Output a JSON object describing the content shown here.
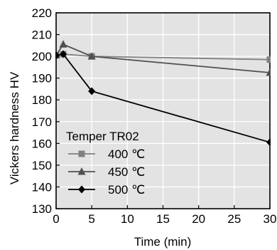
{
  "chart_data": {
    "type": "line",
    "title": "",
    "xlabel": "Time (min)",
    "ylabel": "Vickers hardness HV",
    "xlim": [
      0,
      30
    ],
    "ylim": [
      130,
      220
    ],
    "xticks": [
      0,
      5,
      10,
      15,
      20,
      25,
      30
    ],
    "yticks": [
      130,
      140,
      150,
      160,
      170,
      180,
      190,
      200,
      210,
      220
    ],
    "xtick_labels": [
      "0",
      "5",
      "10",
      "15",
      "20",
      "25",
      "30"
    ],
    "ytick_labels": [
      "130",
      "140",
      "150",
      "160",
      "170",
      "180",
      "190",
      "200",
      "210",
      "220"
    ],
    "grid": true,
    "plot_background": "#e3e3e3",
    "grid_color": "#ffffff",
    "legend": {
      "title": "Temper TR02",
      "placement": "lower-left"
    },
    "series": [
      {
        "name": "400 ℃",
        "marker": "square",
        "color": "#808080",
        "x": [
          0,
          1,
          5,
          30
        ],
        "y": [
          200.5,
          201,
          200,
          198.5
        ]
      },
      {
        "name": "450 ℃",
        "marker": "triangle",
        "color": "#505050",
        "x": [
          0,
          1,
          5,
          30
        ],
        "y": [
          200.5,
          205.5,
          200,
          192.5
        ]
      },
      {
        "name": "500 ℃",
        "marker": "diamond",
        "color": "#000000",
        "x": [
          0,
          1,
          5,
          30
        ],
        "y": [
          200.5,
          201,
          184,
          160.5
        ]
      }
    ]
  }
}
